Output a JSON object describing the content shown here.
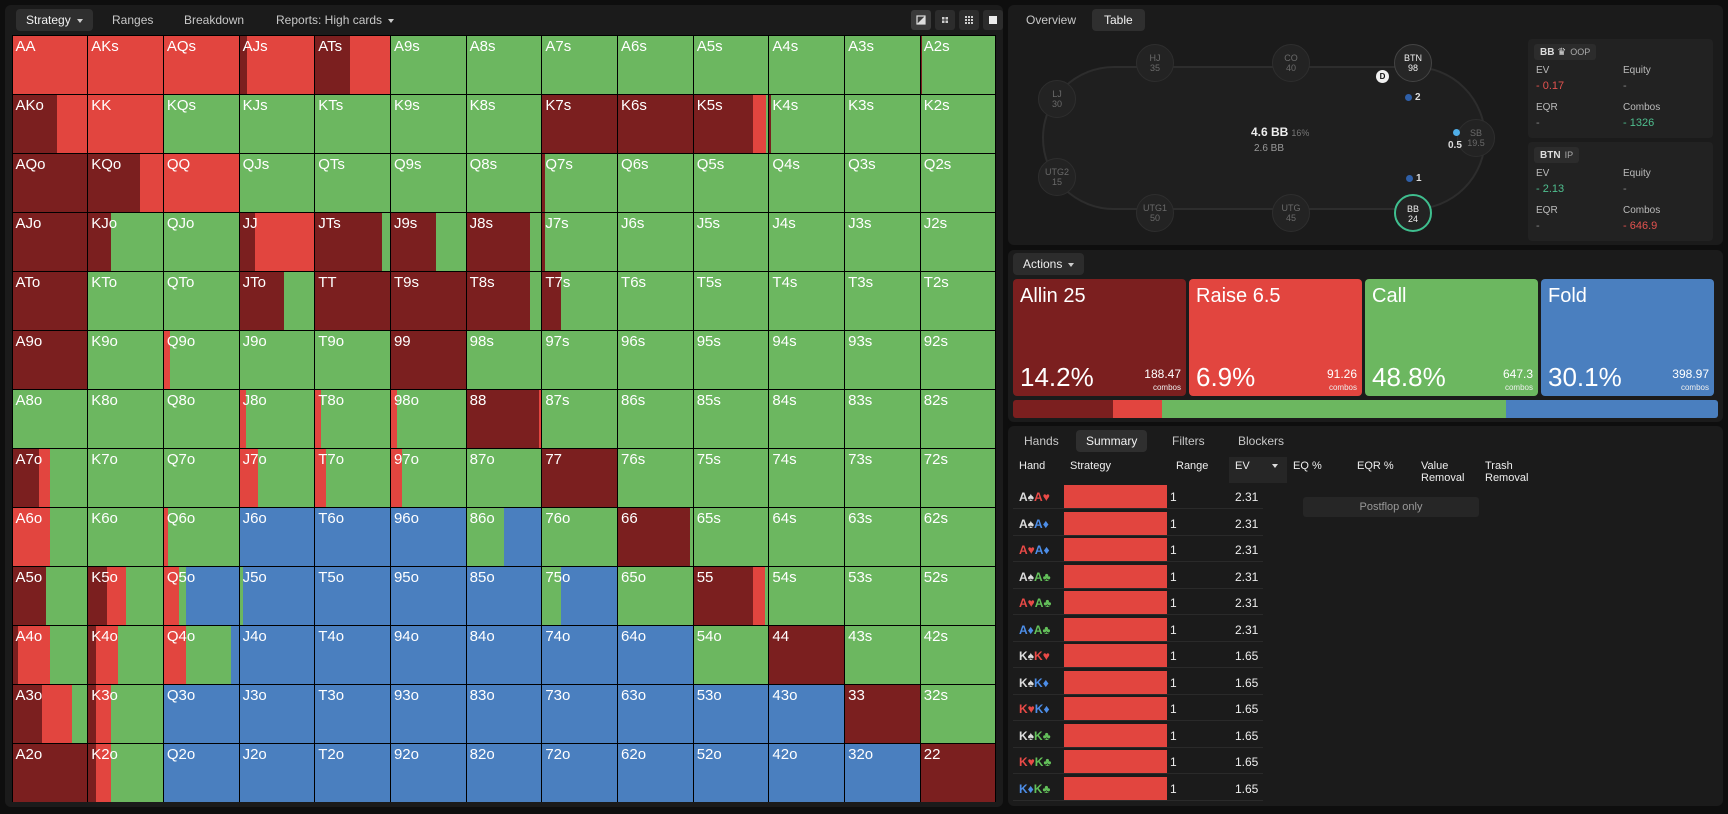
{
  "toolbar": {
    "tabs": [
      "Strategy",
      "Ranges",
      "Breakdown",
      "Reports: High cards"
    ],
    "view_icons": [
      "contrast-icon",
      "compact-grid-icon",
      "grid-icon",
      "square-icon"
    ]
  },
  "colors": {
    "allin": "#7b1f1f",
    "raise": "#e2453f",
    "call": "#6cb760",
    "fold": "#4a7fbf"
  },
  "grid": {
    "rows": [
      [
        "AA",
        "AKs",
        "AQs",
        "AJs",
        "ATs",
        "A9s",
        "A8s",
        "A7s",
        "A6s",
        "A5s",
        "A4s",
        "A3s",
        "A2s"
      ],
      [
        "AKo",
        "KK",
        "KQs",
        "KJs",
        "KTs",
        "K9s",
        "K8s",
        "K7s",
        "K6s",
        "K5s",
        "K4s",
        "K3s",
        "K2s"
      ],
      [
        "AQo",
        "KQo",
        "QQ",
        "QJs",
        "QTs",
        "Q9s",
        "Q8s",
        "Q7s",
        "Q6s",
        "Q5s",
        "Q4s",
        "Q3s",
        "Q2s"
      ],
      [
        "AJo",
        "KJo",
        "QJo",
        "JJ",
        "JTs",
        "J9s",
        "J8s",
        "J7s",
        "J6s",
        "J5s",
        "J4s",
        "J3s",
        "J2s"
      ],
      [
        "ATo",
        "KTo",
        "QTo",
        "JTo",
        "TT",
        "T9s",
        "T8s",
        "T7s",
        "T6s",
        "T5s",
        "T4s",
        "T3s",
        "T2s"
      ],
      [
        "A9o",
        "K9o",
        "Q9o",
        "J9o",
        "T9o",
        "99",
        "98s",
        "97s",
        "96s",
        "95s",
        "94s",
        "93s",
        "92s"
      ],
      [
        "A8o",
        "K8o",
        "Q8o",
        "J8o",
        "T8o",
        "98o",
        "88",
        "87s",
        "86s",
        "85s",
        "84s",
        "83s",
        "82s"
      ],
      [
        "A7o",
        "K7o",
        "Q7o",
        "J7o",
        "T7o",
        "97o",
        "87o",
        "77",
        "76s",
        "75s",
        "74s",
        "73s",
        "72s"
      ],
      [
        "A6o",
        "K6o",
        "Q6o",
        "J6o",
        "T6o",
        "96o",
        "86o",
        "76o",
        "66",
        "65s",
        "64s",
        "63s",
        "62s"
      ],
      [
        "A5o",
        "K5o",
        "Q5o",
        "J5o",
        "T5o",
        "95o",
        "85o",
        "75o",
        "65o",
        "55",
        "54s",
        "53s",
        "52s"
      ],
      [
        "A4o",
        "K4o",
        "Q4o",
        "J4o",
        "T4o",
        "94o",
        "84o",
        "74o",
        "64o",
        "54o",
        "44",
        "43s",
        "42s"
      ],
      [
        "A3o",
        "K3o",
        "Q3o",
        "J3o",
        "T3o",
        "93o",
        "83o",
        "73o",
        "63o",
        "53o",
        "43o",
        "33",
        "32s"
      ],
      [
        "A2o",
        "K2o",
        "Q2o",
        "J2o",
        "T2o",
        "92o",
        "82o",
        "72o",
        "62o",
        "52o",
        "42o",
        "32o",
        "22"
      ]
    ],
    "mix": {
      "AA": [
        0,
        1,
        0,
        0
      ],
      "AKs": [
        0,
        1,
        0,
        0
      ],
      "AQs": [
        0,
        1,
        0,
        0
      ],
      "AJs": [
        0.1,
        0.9,
        0,
        0
      ],
      "ATs": [
        0.47,
        0.53,
        0,
        0
      ],
      "A2s": [
        0.02,
        0,
        0.98,
        0
      ],
      "AKo": [
        0.6,
        0.4,
        0,
        0
      ],
      "KK": [
        0,
        1,
        0,
        0
      ],
      "K7s": [
        1,
        0,
        0,
        0
      ],
      "K6s": [
        1,
        0,
        0,
        0
      ],
      "K5s": [
        0.8,
        0.17,
        0.03,
        0
      ],
      "K4s": [
        0.02,
        0,
        0.98,
        0
      ],
      "AQo": [
        1,
        0,
        0,
        0
      ],
      "KQo": [
        0.7,
        0.3,
        0,
        0
      ],
      "QQ": [
        0,
        1,
        0,
        0
      ],
      "Q7s": [
        0.03,
        0,
        0.97,
        0
      ],
      "AJo": [
        1,
        0,
        0,
        0
      ],
      "KJo": [
        0.3,
        0,
        0.7,
        0
      ],
      "JJ": [
        0.2,
        0.8,
        0,
        0
      ],
      "JTs": [
        0.9,
        0,
        0.1,
        0
      ],
      "J9s": [
        0.6,
        0,
        0.4,
        0
      ],
      "J8s": [
        0.85,
        0,
        0.15,
        0
      ],
      "J7s": [
        0.03,
        0,
        0.97,
        0
      ],
      "ATo": [
        1,
        0,
        0,
        0
      ],
      "JTo": [
        0.6,
        0,
        0.4,
        0
      ],
      "TT": [
        1,
        0,
        0,
        0
      ],
      "T9s": [
        1,
        0,
        0,
        0
      ],
      "T8s": [
        0.85,
        0,
        0.15,
        0
      ],
      "T7s": [
        0.25,
        0,
        0.75,
        0
      ],
      "A9o": [
        1,
        0,
        0,
        0
      ],
      "Q9o": [
        0,
        0.08,
        0.92,
        0
      ],
      "99": [
        1,
        0,
        0,
        0
      ],
      "J8o": [
        0,
        0.08,
        0.92,
        0
      ],
      "T8o": [
        0,
        0.08,
        0.92,
        0
      ],
      "98o": [
        0,
        0.08,
        0.92,
        0
      ],
      "88": [
        0.97,
        0.03,
        0,
        0
      ],
      "A7o": [
        0.35,
        0.15,
        0.5,
        0
      ],
      "J7o": [
        0,
        0.25,
        0.75,
        0
      ],
      "T7o": [
        0,
        0.15,
        0.85,
        0
      ],
      "97o": [
        0,
        0.15,
        0.85,
        0
      ],
      "77": [
        1,
        0,
        0,
        0
      ],
      "A6o": [
        0,
        0.5,
        0.5,
        0
      ],
      "Q6o": [
        0,
        0.06,
        0.94,
        0
      ],
      "J6o": [
        0,
        0,
        0,
        1
      ],
      "T6o": [
        0,
        0,
        0,
        1
      ],
      "96o": [
        0,
        0,
        0,
        1
      ],
      "86o": [
        0,
        0,
        0.5,
        0.5
      ],
      "66": [
        0.97,
        0,
        0.03,
        0
      ],
      "A5o": [
        0.45,
        0,
        0.55,
        0
      ],
      "K5o": [
        0.25,
        0.25,
        0.5,
        0
      ],
      "Q5o": [
        0,
        0.2,
        0.1,
        0.7
      ],
      "J5o": [
        0,
        0,
        0.05,
        0.95
      ],
      "T5o": [
        0,
        0,
        0,
        1
      ],
      "95o": [
        0,
        0,
        0,
        1
      ],
      "85o": [
        0,
        0,
        0,
        1
      ],
      "75o": [
        0,
        0,
        0.25,
        0.75
      ],
      "55": [
        0.8,
        0.15,
        0.05,
        0
      ],
      "A4o": [
        0.07,
        0.43,
        0.5,
        0
      ],
      "K4o": [
        0.1,
        0.3,
        0.6,
        0
      ],
      "Q4o": [
        0,
        0.3,
        0.6,
        0.1
      ],
      "J4o": [
        0,
        0,
        0,
        1
      ],
      "T4o": [
        0,
        0,
        0,
        1
      ],
      "94o": [
        0,
        0,
        0,
        1
      ],
      "84o": [
        0,
        0,
        0,
        1
      ],
      "74o": [
        0,
        0,
        0,
        1
      ],
      "64o": [
        0,
        0,
        0,
        1
      ],
      "44": [
        1,
        0,
        0,
        0
      ],
      "A3o": [
        0.4,
        0.4,
        0.2,
        0
      ],
      "K3o": [
        0.1,
        0.2,
        0.7,
        0
      ],
      "Q3o": [
        0,
        0,
        0,
        1
      ],
      "J3o": [
        0,
        0,
        0,
        1
      ],
      "T3o": [
        0,
        0,
        0,
        1
      ],
      "93o": [
        0,
        0,
        0,
        1
      ],
      "83o": [
        0,
        0,
        0,
        1
      ],
      "73o": [
        0,
        0,
        0,
        1
      ],
      "63o": [
        0,
        0,
        0,
        1
      ],
      "53o": [
        0,
        0,
        0,
        1
      ],
      "43o": [
        0,
        0,
        0,
        1
      ],
      "33": [
        1,
        0,
        0,
        0
      ],
      "A2o": [
        1,
        0,
        0,
        0
      ],
      "K2o": [
        0.1,
        0.2,
        0.7,
        0
      ],
      "Q2o": [
        0,
        0,
        0,
        1
      ],
      "J2o": [
        0,
        0,
        0,
        1
      ],
      "T2o": [
        0,
        0,
        0,
        1
      ],
      "92o": [
        0,
        0,
        0,
        1
      ],
      "82o": [
        0,
        0,
        0,
        1
      ],
      "72o": [
        0,
        0,
        0,
        1
      ],
      "62o": [
        0,
        0,
        0,
        1
      ],
      "52o": [
        0,
        0,
        0,
        1
      ],
      "42o": [
        0,
        0,
        0,
        1
      ],
      "32o": [
        0,
        0,
        0,
        1
      ],
      "22": [
        1,
        0,
        0,
        0
      ]
    }
  },
  "right_tabs": [
    "Overview",
    "Table"
  ],
  "table": {
    "seats": [
      {
        "pos": "HJ",
        "stack": "35",
        "state": "dim"
      },
      {
        "pos": "CO",
        "stack": "40",
        "state": "dim"
      },
      {
        "pos": "BTN",
        "stack": "98",
        "state": "hot"
      },
      {
        "pos": "LJ",
        "stack": "30",
        "state": "dim"
      },
      {
        "pos": "SB",
        "stack": "19.5",
        "state": "dim"
      },
      {
        "pos": "UTG2",
        "stack": "15",
        "state": "dim"
      },
      {
        "pos": "UTG1",
        "stack": "50",
        "state": "dim"
      },
      {
        "pos": "UTG",
        "stack": "45",
        "state": "dim"
      },
      {
        "pos": "BB",
        "stack": "24",
        "state": "hero"
      }
    ],
    "pot": "4.6 BB",
    "pot_pct": "16%",
    "pot_sub": "2.6 BB",
    "dealer": "D",
    "chips": [
      "2",
      "0.5",
      "1"
    ]
  },
  "players": [
    {
      "name": "BB",
      "badge": "♛",
      "role": "OOP",
      "ev_label": "EV",
      "ev": "- 0.17",
      "equity_label": "Equity",
      "equity": "-",
      "eqr_label": "EQR",
      "eqr": "-",
      "combos_label": "Combos",
      "combos": "- 1326"
    },
    {
      "name": "BTN",
      "badge": "",
      "role": "IP",
      "ev_label": "EV",
      "ev": "- 2.13",
      "equity_label": "Equity",
      "equity": "-",
      "eqr_label": "EQR",
      "eqr": "-",
      "combos_label": "Combos",
      "combos": "- 646.9"
    }
  ],
  "actions": {
    "label": "Actions",
    "cards": [
      {
        "name": "Allin 25",
        "pct": "14.2%",
        "combos": "188.47",
        "unit": "combos",
        "share": 0.142
      },
      {
        "name": "Raise 6.5",
        "pct": "6.9%",
        "combos": "91.26",
        "unit": "combos",
        "share": 0.069
      },
      {
        "name": "Call",
        "pct": "48.8%",
        "combos": "647.3",
        "unit": "combos",
        "share": 0.488
      },
      {
        "name": "Fold",
        "pct": "30.1%",
        "combos": "398.97",
        "unit": "combos",
        "share": 0.301
      }
    ]
  },
  "bottom_tabs": [
    "Hands",
    "Summary",
    "Filters",
    "Blockers"
  ],
  "hands_table": {
    "headers": [
      "Hand",
      "Strategy",
      "Range",
      "EV",
      "EQ %",
      "EQR %",
      "Value Removal",
      "Trash Removal"
    ],
    "postflop_note": "Postflop only",
    "rows": [
      {
        "c1": "A♠",
        "c1s": "w",
        "c2": "A♥",
        "c2s": "r",
        "range": "1",
        "ev": "2.31"
      },
      {
        "c1": "A♠",
        "c1s": "w",
        "c2": "A♦",
        "c2s": "b",
        "range": "1",
        "ev": "2.31"
      },
      {
        "c1": "A♥",
        "c1s": "r",
        "c2": "A♦",
        "c2s": "b",
        "range": "1",
        "ev": "2.31"
      },
      {
        "c1": "A♠",
        "c1s": "w",
        "c2": "A♣",
        "c2s": "g",
        "range": "1",
        "ev": "2.31"
      },
      {
        "c1": "A♥",
        "c1s": "r",
        "c2": "A♣",
        "c2s": "g",
        "range": "1",
        "ev": "2.31"
      },
      {
        "c1": "A♦",
        "c1s": "b",
        "c2": "A♣",
        "c2s": "g",
        "range": "1",
        "ev": "2.31"
      },
      {
        "c1": "K♠",
        "c1s": "w",
        "c2": "K♥",
        "c2s": "r",
        "range": "1",
        "ev": "1.65"
      },
      {
        "c1": "K♠",
        "c1s": "w",
        "c2": "K♦",
        "c2s": "b",
        "range": "1",
        "ev": "1.65"
      },
      {
        "c1": "K♥",
        "c1s": "r",
        "c2": "K♦",
        "c2s": "b",
        "range": "1",
        "ev": "1.65"
      },
      {
        "c1": "K♠",
        "c1s": "w",
        "c2": "K♣",
        "c2s": "g",
        "range": "1",
        "ev": "1.65"
      },
      {
        "c1": "K♥",
        "c1s": "r",
        "c2": "K♣",
        "c2s": "g",
        "range": "1",
        "ev": "1.65"
      },
      {
        "c1": "K♦",
        "c1s": "b",
        "c2": "K♣",
        "c2s": "g",
        "range": "1",
        "ev": "1.65"
      }
    ]
  }
}
